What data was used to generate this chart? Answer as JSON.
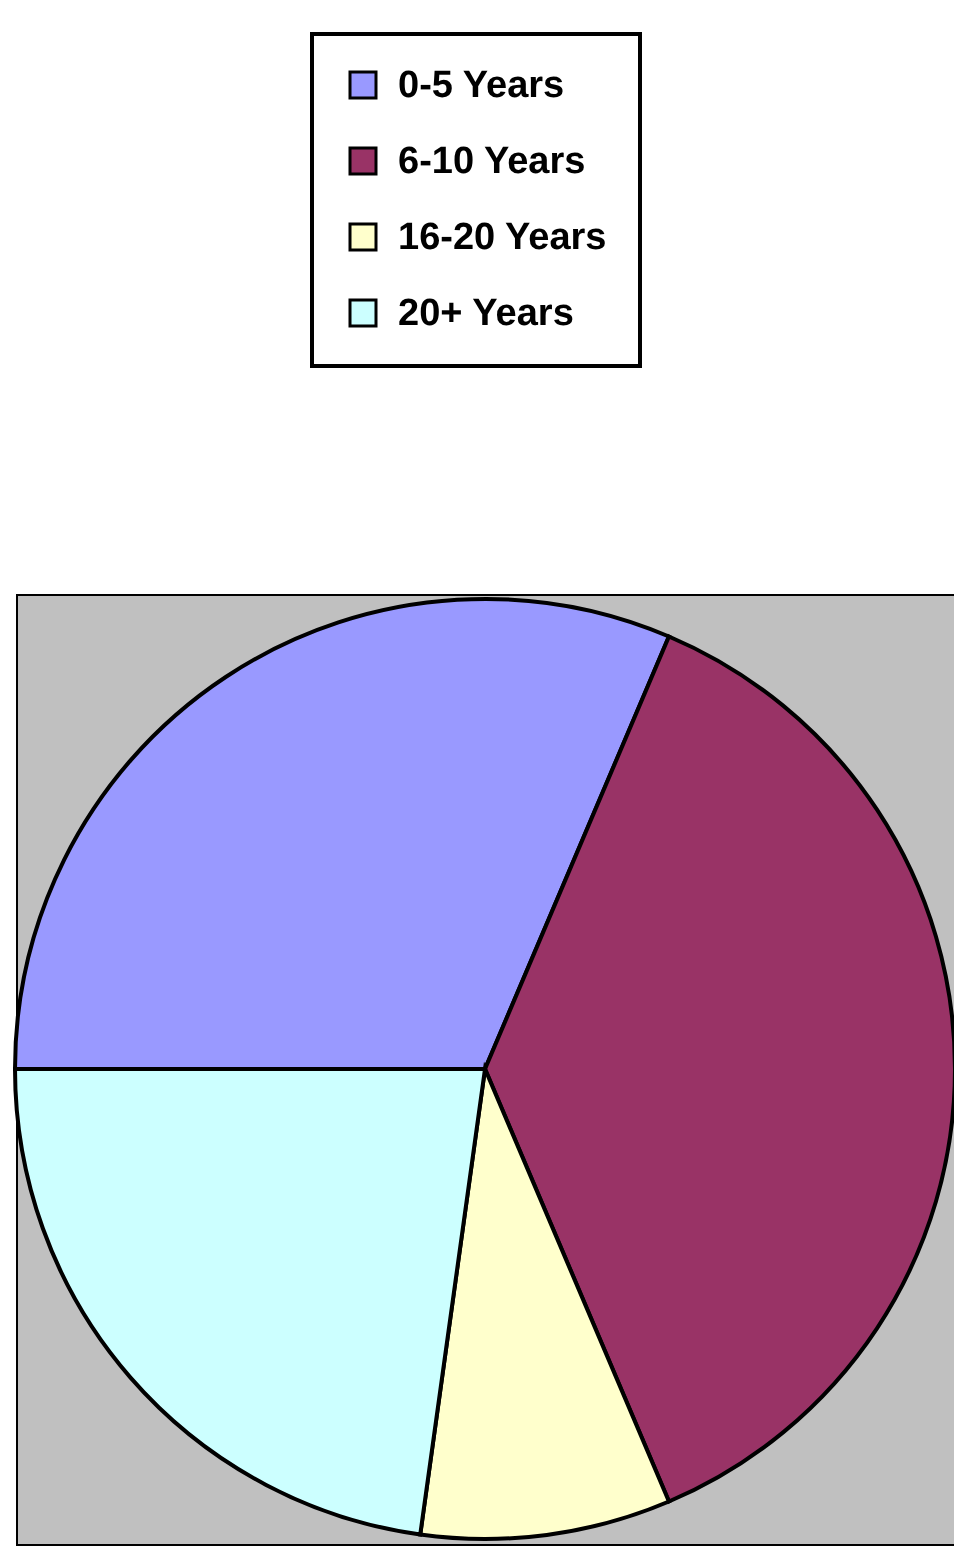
{
  "chart_data": {
    "type": "pie",
    "categories": [
      "0-5 Years",
      "6-10 Years",
      "16-20 Years",
      "20+ Years"
    ],
    "values": [
      31.4,
      37.2,
      8.6,
      22.8
    ],
    "colors": [
      "#9999ff",
      "#993366",
      "#ffffcc",
      "#ccffff"
    ],
    "legend": "top"
  }
}
